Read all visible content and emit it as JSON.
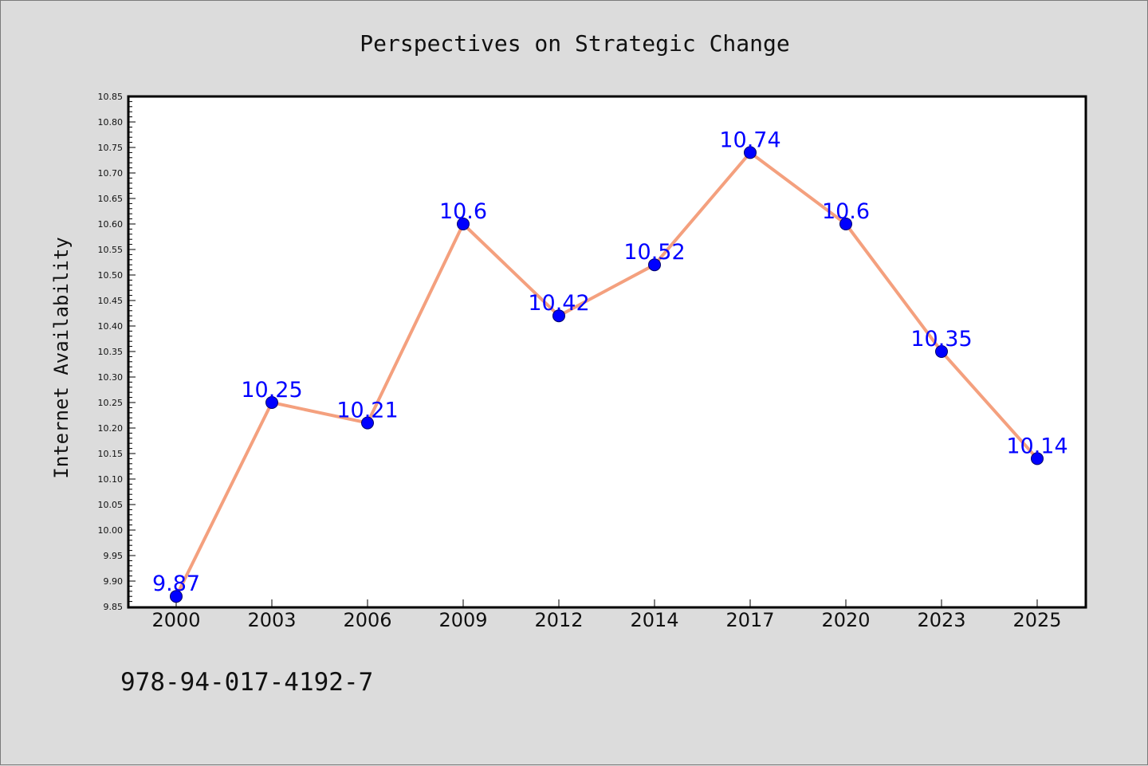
{
  "chart_data": {
    "type": "line",
    "title": "Perspectives on Strategic Change",
    "ylabel": "Internet Availability",
    "xlabel": "",
    "categories": [
      "2000",
      "2003",
      "2006",
      "2009",
      "2012",
      "2014",
      "2017",
      "2020",
      "2023",
      "2025"
    ],
    "series": [
      {
        "values": [
          9.87,
          10.25,
          10.21,
          10.6,
          10.42,
          10.52,
          10.74,
          10.6,
          10.35,
          10.14
        ]
      }
    ],
    "data_labels": [
      "9.87",
      "10.25",
      "10.21",
      "10.6",
      "10.42",
      "10.52",
      "10.74",
      "10.6",
      "10.35",
      "10.14"
    ],
    "ylim": [
      9.85,
      10.85
    ],
    "yticks": [
      "9.85",
      "9.90",
      "9.95",
      "10.00",
      "10.05",
      "10.10",
      "10.15",
      "10.20",
      "10.25",
      "10.30",
      "10.35",
      "10.40",
      "10.45",
      "10.50",
      "10.55",
      "10.60",
      "10.65",
      "10.70",
      "10.75",
      "10.80",
      "10.85"
    ],
    "grid": false,
    "line_color": "#f4a07e",
    "marker_color": "#0000ff",
    "label_color": "#0000ff",
    "background": "#dcdcdc",
    "plot_background": "#ffffff"
  },
  "footer": {
    "text": "978-94-017-4192-7"
  }
}
